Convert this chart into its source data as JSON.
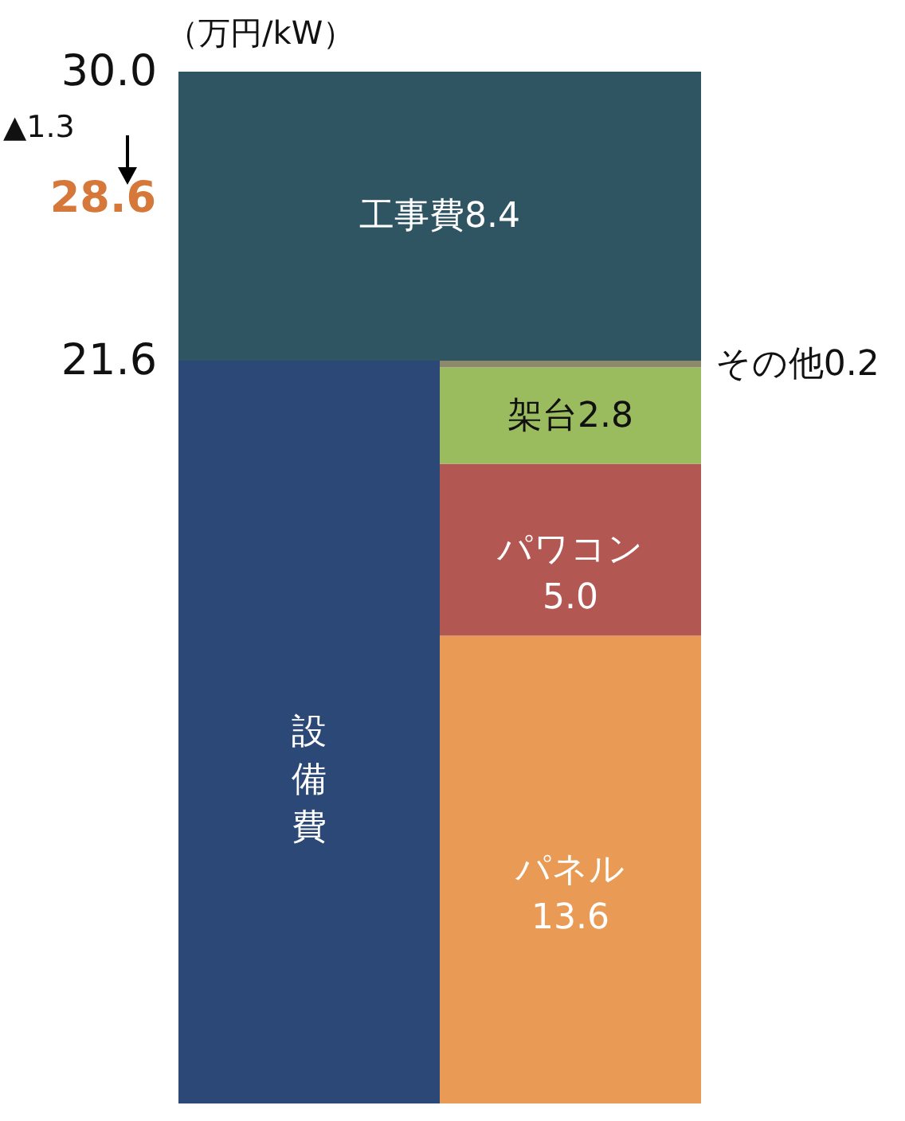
{
  "chart_data": {
    "type": "bar",
    "stacked": true,
    "ylabel": "（万円/kW）",
    "categories": [
      null,
      null
    ],
    "tick_labels": "y",
    "ylim": [
      0,
      30
    ],
    "yticks": [
      21.6,
      {
        "value": 30,
        "label": "30.0"
      }
    ],
    "series": [
      {
        "name": "設備費",
        "color": "#2b4876",
        "values": [
          21.6,
          null
        ],
        "value_labels": [
          null,
          null
        ]
      },
      {
        "name": "パネル",
        "color": "#e99b55",
        "values": [
          null,
          13.6
        ],
        "value_labels": [
          null,
          "13.6"
        ]
      },
      {
        "name": "パワコン",
        "color": "#b35752",
        "values": [
          null,
          5.0
        ],
        "value_labels": [
          null,
          "5.0"
        ]
      },
      {
        "name": "架台",
        "color": "#9bbb5f",
        "values": [
          null,
          2.8
        ],
        "value_labels": [
          null,
          "2.8"
        ]
      },
      {
        "name": "その他",
        "color": "#8c8a6a",
        "values": [
          null,
          0.2
        ],
        "value_labels": [
          null,
          "0.2"
        ]
      },
      {
        "name": "工事費",
        "color": "#2f5562",
        "values": [
          8.4,
          8.4
        ],
        "value_labels": [
          "8.4",
          null
        ]
      }
    ],
    "annotations": [
      "▲1.3",
      "28.6"
    ]
  }
}
